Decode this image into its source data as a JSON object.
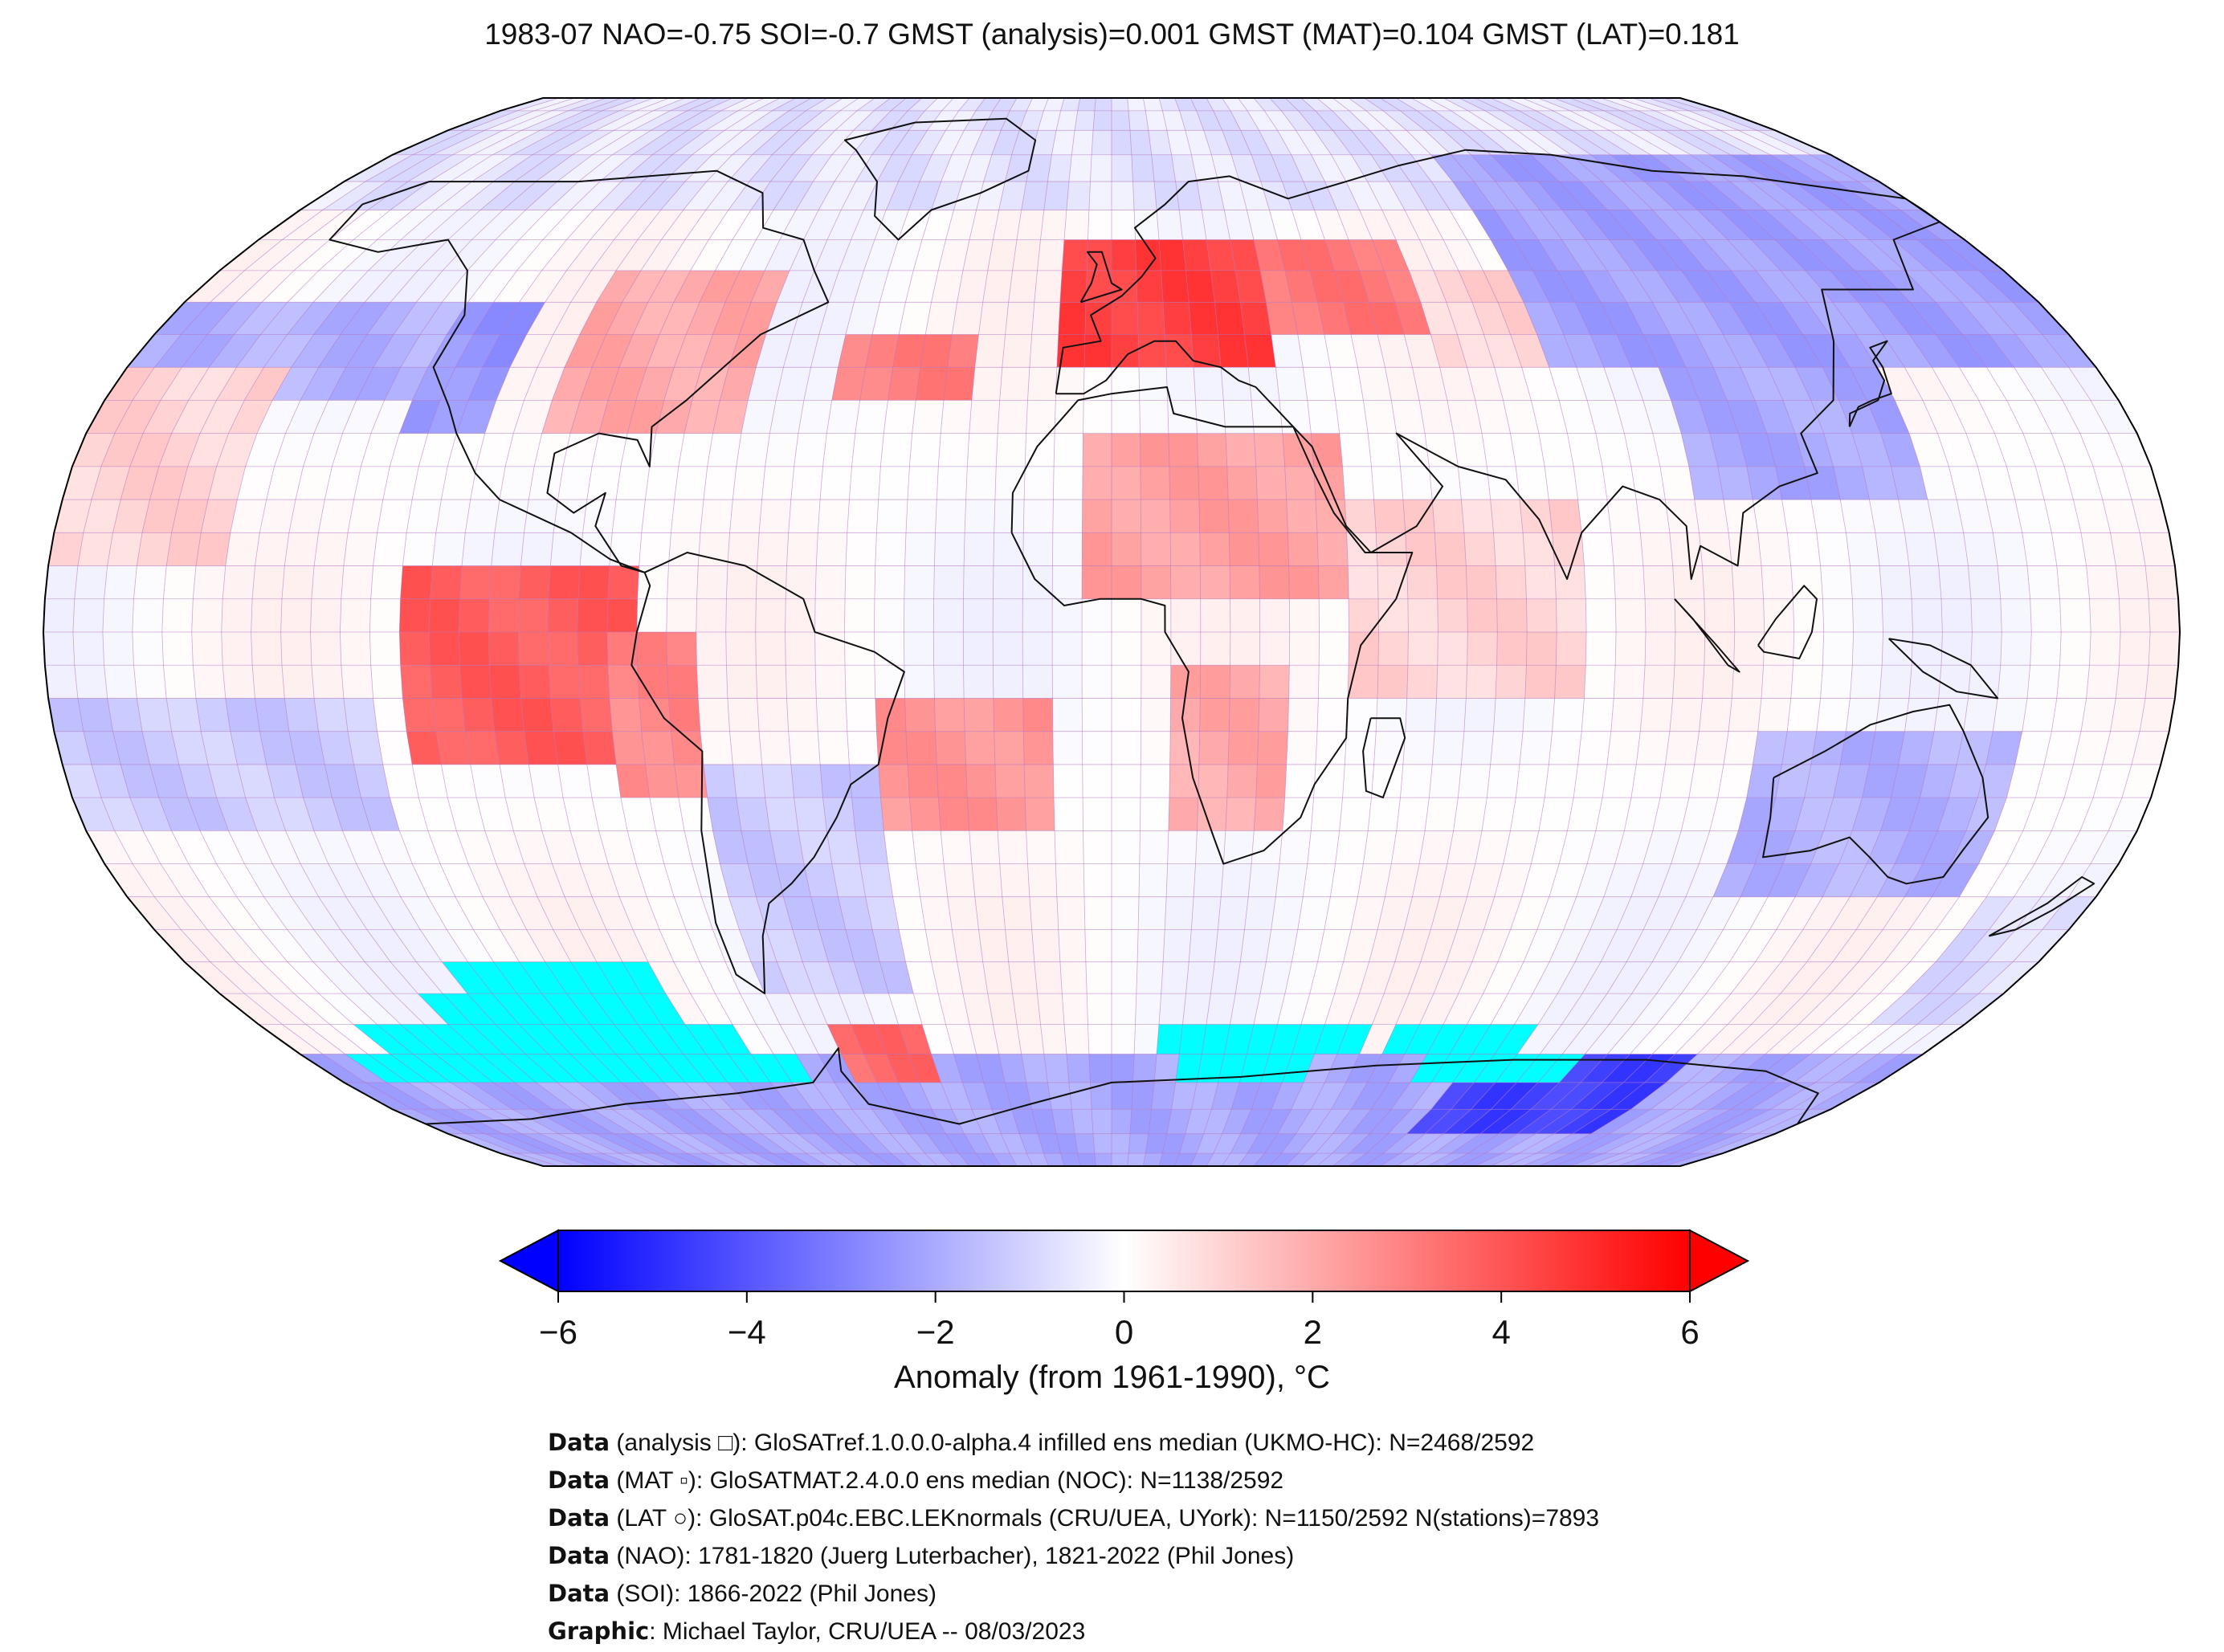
{
  "title": "1983-07 NAO=-0.75 SOI=-0.7 GMST (analysis)=0.001 GMST (MAT)=0.104 GMST (LAT)=0.181",
  "colors": {
    "cold": "#0000ff",
    "neutral": "#ffffff",
    "warm": "#ff0000",
    "missing": "#00ffff",
    "grid": "#b070c0",
    "coast": "#111111"
  },
  "colorbar": {
    "label": "Anomaly (from 1961-1990), °C",
    "vmin": -6,
    "vmax": 6,
    "extend": "both",
    "ticks": [
      "−6",
      "−4",
      "−2",
      "0",
      "2",
      "4",
      "6"
    ],
    "tick_values": [
      -6,
      -4,
      -2,
      0,
      2,
      4,
      6
    ]
  },
  "credits": [
    {
      "key": "Data",
      "text": " (analysis □): GloSATref.1.0.0.0-alpha.4 infilled ens median (UKMO-HC): N=2468/2592"
    },
    {
      "key": "Data",
      "text": " (MAT ▫): GloSATMAT.2.4.0.0 ens median (NOC): N=1138/2592"
    },
    {
      "key": "Data",
      "text": " (LAT ○): GloSAT.p04c.EBC.LEKnormals (CRU/UEA, UYork): N=1150/2592 N(stations)=7893"
    },
    {
      "key": "Data",
      "text": " (NAO): 1781-1820 (Juerg Luterbacher), 1821-2022 (Phil Jones)"
    },
    {
      "key": "Data",
      "text": " (SOI): 1866-2022 (Phil Jones)"
    },
    {
      "key": "Graphic",
      "text": ": Michael Taylor, CRU/UEA -- 08/03/2023"
    }
  ],
  "map": {
    "projection": "Robinson",
    "grid_resolution_deg": 5,
    "central_longitude": 0,
    "anomaly_regions": [
      {
        "lon": [
          -180,
          180
        ],
        "lat": [
          65,
          90
        ],
        "value": -0.6
      },
      {
        "lon": [
          -180,
          180
        ],
        "lat": [
          -90,
          -65
        ],
        "value": -2.0
      },
      {
        "lon": [
          -180,
          -120
        ],
        "lat": [
          35,
          50
        ],
        "value": -1.8
      },
      {
        "lon": [
          -125,
          -110
        ],
        "lat": [
          30,
          50
        ],
        "value": -2.5
      },
      {
        "lon": [
          -100,
          -65
        ],
        "lat": [
          30,
          55
        ],
        "value": 2.0
      },
      {
        "lon": [
          -50,
          -25
        ],
        "lat": [
          35,
          45
        ],
        "value": 3.0
      },
      {
        "lon": [
          -10,
          30
        ],
        "lat": [
          40,
          60
        ],
        "value": 4.5
      },
      {
        "lon": [
          30,
          60
        ],
        "lat": [
          45,
          60
        ],
        "value": 3.2
      },
      {
        "lon": [
          60,
          80
        ],
        "lat": [
          40,
          55
        ],
        "value": 1.0
      },
      {
        "lon": [
          80,
          180
        ],
        "lat": [
          40,
          75
        ],
        "value": -2.2
      },
      {
        "lon": [
          100,
          140
        ],
        "lat": [
          20,
          40
        ],
        "value": -2.0
      },
      {
        "lon": [
          -120,
          -80
        ],
        "lat": [
          -20,
          10
        ],
        "value": 3.8
      },
      {
        "lon": [
          -85,
          -70
        ],
        "lat": [
          -25,
          0
        ],
        "value": 2.8
      },
      {
        "lon": [
          -180,
          -125
        ],
        "lat": [
          -30,
          -10
        ],
        "value": -1.2
      },
      {
        "lon": [
          -180,
          -150
        ],
        "lat": [
          10,
          40
        ],
        "value": 1.0
      },
      {
        "lon": [
          -40,
          -10
        ],
        "lat": [
          -30,
          -10
        ],
        "value": 2.5
      },
      {
        "lon": [
          -5,
          40
        ],
        "lat": [
          5,
          30
        ],
        "value": 2.2
      },
      {
        "lon": [
          10,
          30
        ],
        "lat": [
          -30,
          -5
        ],
        "value": 2.0
      },
      {
        "lon": [
          40,
          80
        ],
        "lat": [
          -10,
          20
        ],
        "value": 1.0
      },
      {
        "lon": [
          110,
          155
        ],
        "lat": [
          -40,
          -15
        ],
        "value": -1.8
      },
      {
        "lon": [
          -60,
          -40
        ],
        "lat": [
          -70,
          -60
        ],
        "value": 3.5
      },
      {
        "lon": [
          -70,
          -40
        ],
        "lat": [
          -55,
          -20
        ],
        "value": -1.2
      },
      {
        "lon": [
          80,
          130
        ],
        "lat": [
          -80,
          -65
        ],
        "value": -4.5
      },
      {
        "lon": [
          160,
          180
        ],
        "lat": [
          -60,
          -40
        ],
        "value": -0.8
      }
    ],
    "missing_regions": [
      {
        "lon": [
          -130,
          -90
        ],
        "lat": [
          -55,
          -50
        ]
      },
      {
        "lon": [
          -140,
          -90
        ],
        "lat": [
          -60,
          -55
        ]
      },
      {
        "lon": [
          -160,
          -80
        ],
        "lat": [
          -65,
          -60
        ]
      },
      {
        "lon": [
          -170,
          -70
        ],
        "lat": [
          -70,
          -65
        ]
      },
      {
        "lon": [
          10,
          55
        ],
        "lat": [
          -65,
          -60
        ]
      },
      {
        "lon": [
          15,
          45
        ],
        "lat": [
          -70,
          -65
        ]
      },
      {
        "lon": [
          60,
          90
        ],
        "lat": [
          -65,
          -60
        ]
      },
      {
        "lon": [
          70,
          105
        ],
        "lat": [
          -70,
          -65
        ]
      }
    ]
  }
}
